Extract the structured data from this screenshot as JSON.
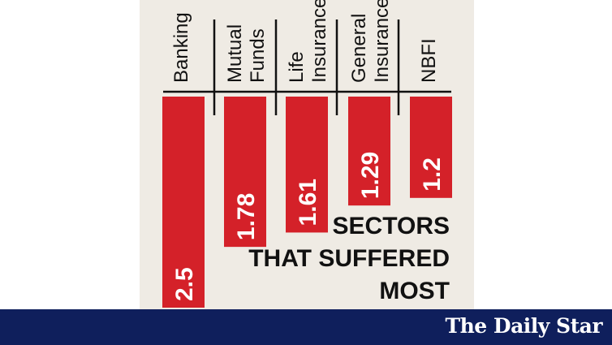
{
  "chart_data": {
    "type": "bar",
    "categories": [
      [
        "Banking"
      ],
      [
        "Mutual",
        "Funds"
      ],
      [
        "Life",
        "Insurance"
      ],
      [
        "General",
        "Insurance"
      ],
      [
        "NBFI"
      ]
    ],
    "values": [
      2.5,
      1.78,
      1.61,
      1.29,
      1.2
    ],
    "value_labels": [
      "2.5",
      "1.78",
      "1.61",
      "1.29",
      "1.2"
    ],
    "title": [
      "SECTORS",
      "THAT SUFFERED",
      "MOST"
    ],
    "orientation": "vertical, bars hanging downward",
    "grid": false,
    "bar_color": "#d42129",
    "background_color": "#efebe4"
  },
  "footer": {
    "logo_text": "The Daily Star",
    "color": "#0f1f5c"
  }
}
